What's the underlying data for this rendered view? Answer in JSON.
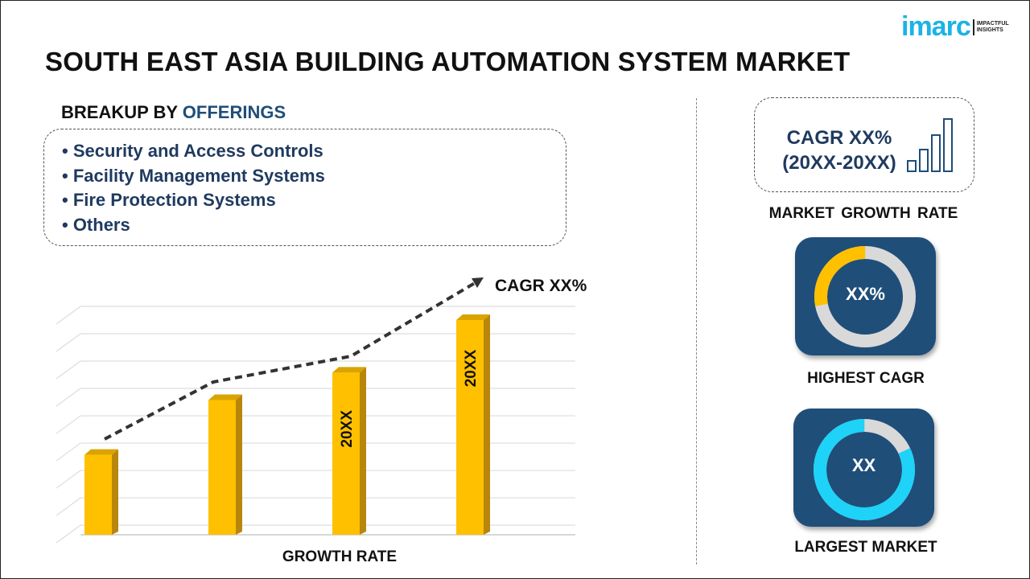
{
  "title": "SOUTH EAST ASIA BUILDING AUTOMATION SYSTEM MARKET",
  "logo": {
    "word": "imarc",
    "tagline": "IMPACTFUL INSIGHTS"
  },
  "breakup": {
    "prefix": "BREAKUP BY",
    "highlight": "OFFERINGS",
    "items": [
      "• Security and Access Controls",
      "• Facility Management Systems",
      "• Fire Protection Systems",
      "• Others"
    ]
  },
  "growth_chart": {
    "trend_label": "CAGR XX%",
    "xlabel": "GROWTH RATE",
    "bar_labels": [
      "",
      "",
      "20XX",
      "20XX"
    ],
    "bar_color": "#ffc000",
    "relative_heights": [
      0.35,
      0.59,
      0.71,
      0.94
    ]
  },
  "cagr_card": {
    "line1": "CAGR XX%",
    "line2": "(20XX-20XX)",
    "caption": "MARKET GROWTH RATE",
    "icon": "bar-chart-icon"
  },
  "highest_cagr": {
    "value": "XX%",
    "caption": "HIGHEST CAGR",
    "fill_fraction": 0.28,
    "fill_color": "#ffc000"
  },
  "largest_market": {
    "value": "XX",
    "caption": "LARGEST MARKET",
    "fill_fraction": 0.82,
    "fill_color": "#1ed2f8"
  },
  "colors": {
    "navy": "#1f4e79",
    "accent_blue": "#1bb3e6",
    "yellow": "#ffc000"
  }
}
